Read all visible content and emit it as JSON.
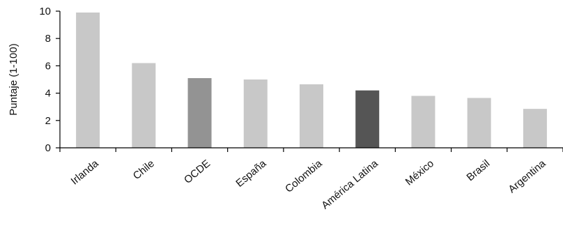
{
  "chart_data": {
    "type": "bar",
    "title": "",
    "xlabel": "",
    "ylabel": "Puntaje (1-100)",
    "ylim": [
      0,
      10
    ],
    "yticks": [
      0,
      2,
      4,
      6,
      8,
      10
    ],
    "grid": false,
    "categories": [
      "Irlanda",
      "Chile",
      "OCDE",
      "España",
      "Colombia",
      "América Latina",
      "México",
      "Brasil",
      "Argentina"
    ],
    "values": [
      9.9,
      6.2,
      5.1,
      5.0,
      4.65,
      4.2,
      3.8,
      3.65,
      2.85
    ],
    "colors": [
      "#c8c8c8",
      "#c8c8c8",
      "#939393",
      "#c8c8c8",
      "#c8c8c8",
      "#555555",
      "#c8c8c8",
      "#c8c8c8",
      "#c8c8c8"
    ]
  }
}
